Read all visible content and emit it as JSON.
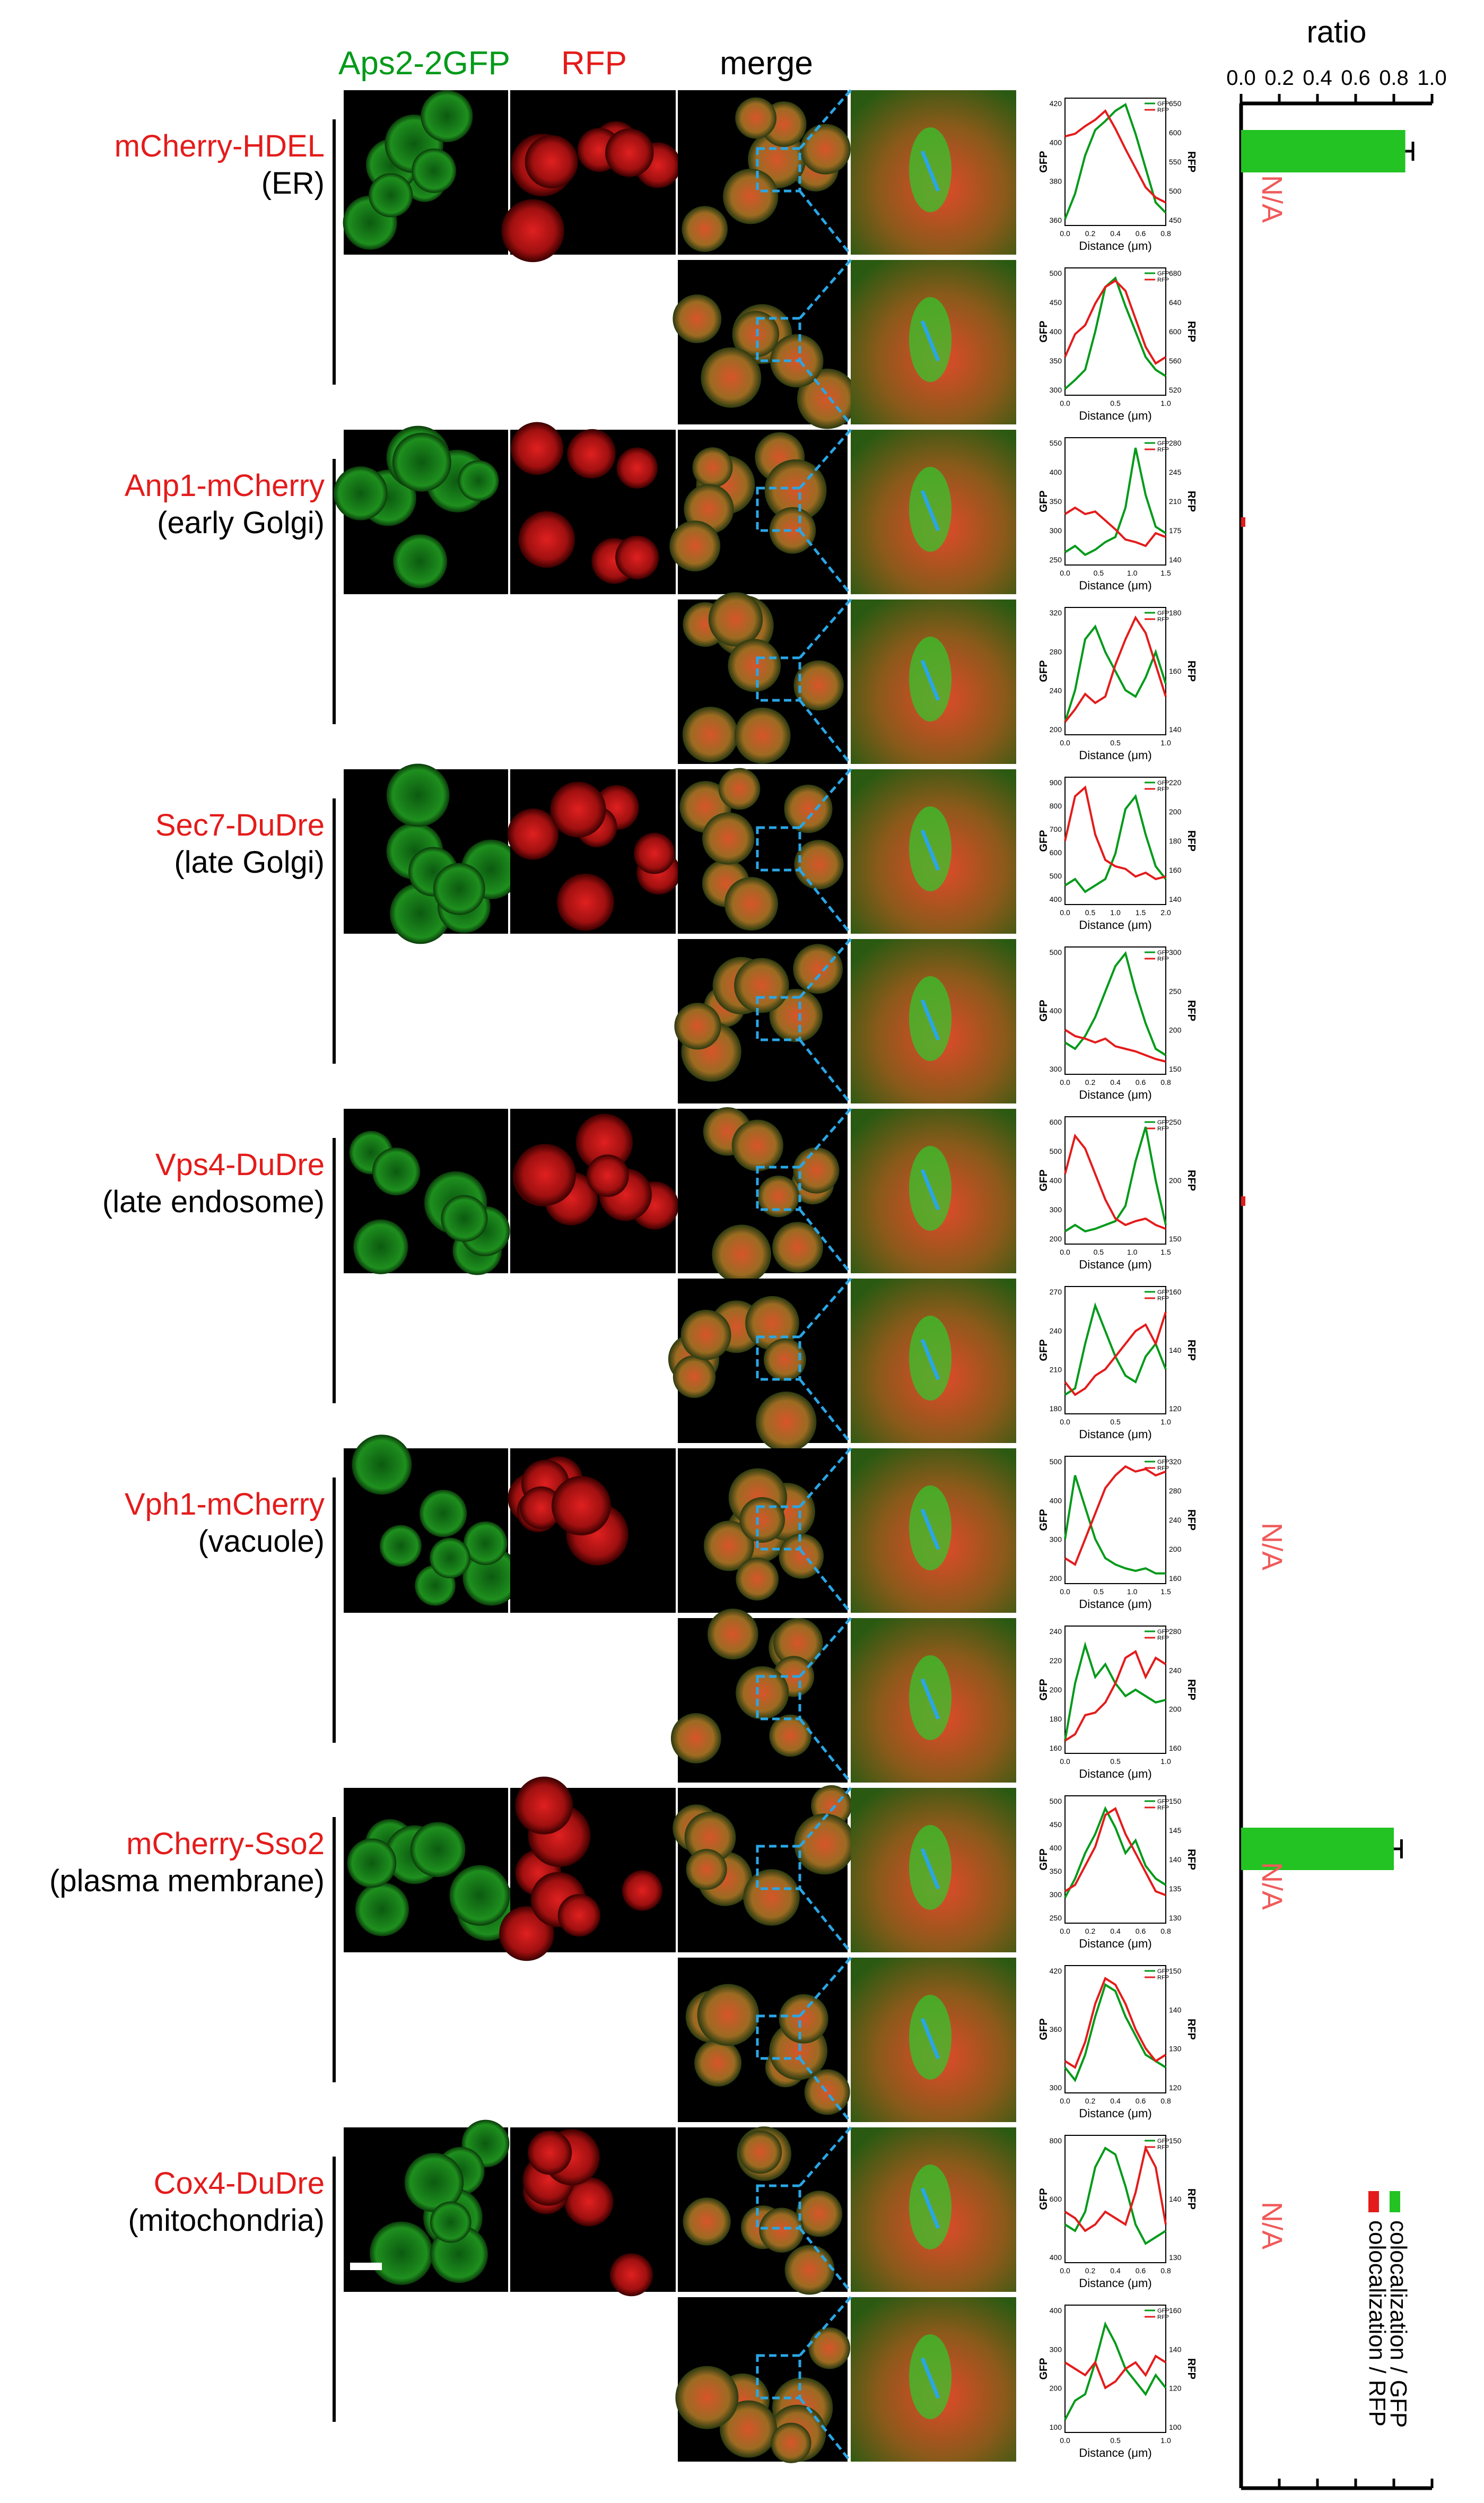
{
  "colors": {
    "gfp": "#009a19",
    "rfp": "#e41b1b",
    "bar": "#22c322",
    "na": "#f05a5a",
    "scan": "#2aa6e6",
    "axis": "#000000"
  },
  "headers": {
    "gfp": "Aps2-2GFP",
    "rfp": "RFP",
    "merge": "merge"
  },
  "groups": [
    {
      "marker": "mCherry-HDEL",
      "compartment": "(ER)",
      "na": "N/A",
      "gfp_ratio": 0.86,
      "gfp_err": 0.04,
      "rows": [
        {
          "ymin": 450,
          "ymax": 650,
          "y_ticks": [
            "420",
            "400",
            "380",
            "360"
          ],
          "r_ticks": [
            "650",
            "600",
            "550",
            "500",
            "450"
          ],
          "x_ticks": [
            "0.0",
            "0.2",
            "0.4",
            "0.6",
            "0.8"
          ],
          "gfp": [
            0.05,
            0.25,
            0.55,
            0.75,
            0.82,
            0.9,
            0.95,
            0.72,
            0.45,
            0.18,
            0.1
          ],
          "rfp": [
            0.7,
            0.72,
            0.78,
            0.83,
            0.9,
            0.76,
            0.6,
            0.45,
            0.3,
            0.22,
            0.18
          ]
        },
        {
          "ymin": 0,
          "ymax": 1,
          "y_ticks": [
            "500",
            "450",
            "400",
            "350",
            "300"
          ],
          "r_ticks": [
            "680",
            "640",
            "600",
            "560",
            "520"
          ],
          "x_ticks": [
            "0.0",
            "0.5",
            "1.0"
          ],
          "gfp": [
            0.05,
            0.12,
            0.2,
            0.5,
            0.85,
            0.92,
            0.7,
            0.5,
            0.3,
            0.2,
            0.15
          ],
          "rfp": [
            0.3,
            0.48,
            0.55,
            0.72,
            0.85,
            0.9,
            0.82,
            0.6,
            0.38,
            0.25,
            0.3
          ]
        }
      ]
    },
    {
      "marker": "Anp1-mCherry",
      "compartment": "(early Golgi)",
      "na": "",
      "gfp_ratio": 0.0,
      "gfp_err": 0.0,
      "rows": [
        {
          "ymin": 0,
          "ymax": 1,
          "y_ticks": [
            "550",
            "400",
            "350",
            "300",
            "250"
          ],
          "r_ticks": [
            "280",
            "245",
            "210",
            "175",
            "140"
          ],
          "x_ticks": [
            "0.0",
            "0.5",
            "1.0",
            "1.5"
          ],
          "gfp": [
            0.1,
            0.15,
            0.08,
            0.12,
            0.18,
            0.22,
            0.45,
            0.92,
            0.55,
            0.3,
            0.25
          ],
          "rfp": [
            0.4,
            0.45,
            0.4,
            0.42,
            0.35,
            0.28,
            0.2,
            0.18,
            0.15,
            0.25,
            0.22
          ]
        },
        {
          "ymin": 0,
          "ymax": 1,
          "y_ticks": [
            "320",
            "280",
            "240",
            "200"
          ],
          "r_ticks": [
            "180",
            "160",
            "140"
          ],
          "x_ticks": [
            "0.0",
            "0.5",
            "1.0"
          ],
          "gfp": [
            0.1,
            0.35,
            0.75,
            0.85,
            0.65,
            0.5,
            0.35,
            0.3,
            0.45,
            0.65,
            0.4
          ],
          "rfp": [
            0.1,
            0.2,
            0.32,
            0.25,
            0.3,
            0.55,
            0.75,
            0.92,
            0.8,
            0.55,
            0.3
          ]
        }
      ]
    },
    {
      "marker": "Sec7-DuDre",
      "compartment": "(late Golgi)",
      "na": "",
      "gfp_ratio": 0.0,
      "gfp_err": 0.0,
      "rows": [
        {
          "ymin": 0,
          "ymax": 1,
          "y_ticks": [
            "900",
            "800",
            "700",
            "600",
            "500",
            "400"
          ],
          "r_ticks": [
            "220",
            "200",
            "180",
            "160",
            "140"
          ],
          "x_ticks": [
            "0.0",
            "0.5",
            "1.0",
            "1.5",
            "2.0"
          ],
          "gfp": [
            0.15,
            0.2,
            0.1,
            0.15,
            0.2,
            0.4,
            0.75,
            0.85,
            0.55,
            0.3,
            0.2
          ],
          "rfp": [
            0.5,
            0.85,
            0.92,
            0.55,
            0.35,
            0.3,
            0.28,
            0.22,
            0.25,
            0.2,
            0.22
          ]
        },
        {
          "ymin": 0,
          "ymax": 1,
          "y_ticks": [
            "500",
            "400",
            "300"
          ],
          "r_ticks": [
            "300",
            "250",
            "200",
            "150"
          ],
          "x_ticks": [
            "0.0",
            "0.2",
            "0.4",
            "0.6",
            "0.8"
          ],
          "gfp": [
            0.25,
            0.2,
            0.3,
            0.45,
            0.65,
            0.85,
            0.95,
            0.65,
            0.4,
            0.2,
            0.15
          ],
          "rfp": [
            0.35,
            0.3,
            0.28,
            0.25,
            0.28,
            0.22,
            0.2,
            0.18,
            0.15,
            0.12,
            0.1
          ]
        }
      ]
    },
    {
      "marker": "Vps4-DuDre",
      "compartment": "(late endosome)",
      "na": "",
      "gfp_ratio": 0.0,
      "gfp_err": 0.0,
      "rows": [
        {
          "ymin": 0,
          "ymax": 1,
          "y_ticks": [
            "600",
            "500",
            "400",
            "300",
            "200"
          ],
          "r_ticks": [
            "250",
            "200",
            "150"
          ],
          "x_ticks": [
            "0.0",
            "0.5",
            "1.0",
            "1.5"
          ],
          "gfp": [
            0.1,
            0.15,
            0.1,
            0.12,
            0.15,
            0.18,
            0.3,
            0.65,
            0.92,
            0.5,
            0.15
          ],
          "rfp": [
            0.55,
            0.85,
            0.75,
            0.55,
            0.35,
            0.2,
            0.15,
            0.18,
            0.2,
            0.15,
            0.12
          ]
        },
        {
          "ymin": 0,
          "ymax": 1,
          "y_ticks": [
            "270",
            "240",
            "210",
            "180"
          ],
          "r_ticks": [
            "160",
            "140",
            "120"
          ],
          "x_ticks": [
            "0.0",
            "0.5",
            "1.0"
          ],
          "gfp": [
            0.15,
            0.2,
            0.55,
            0.85,
            0.65,
            0.45,
            0.3,
            0.25,
            0.45,
            0.55,
            0.35
          ],
          "rfp": [
            0.25,
            0.15,
            0.2,
            0.3,
            0.35,
            0.45,
            0.55,
            0.65,
            0.7,
            0.55,
            0.8
          ]
        }
      ]
    },
    {
      "marker": "Vph1-mCherry",
      "compartment": "(vacuole)",
      "na": "N/A",
      "gfp_ratio": 0.0,
      "gfp_err": 0.0,
      "rows": [
        {
          "ymin": 0,
          "ymax": 1,
          "y_ticks": [
            "500",
            "400",
            "300",
            "200"
          ],
          "r_ticks": [
            "320",
            "280",
            "240",
            "200",
            "160"
          ],
          "x_ticks": [
            "0.0",
            "0.5",
            "1.0",
            "1.5"
          ],
          "gfp": [
            0.35,
            0.85,
            0.6,
            0.35,
            0.2,
            0.15,
            0.12,
            0.1,
            0.12,
            0.08,
            0.08
          ],
          "rfp": [
            0.2,
            0.15,
            0.35,
            0.55,
            0.75,
            0.85,
            0.92,
            0.88,
            0.9,
            0.85,
            0.88
          ]
        },
        {
          "ymin": 0,
          "ymax": 1,
          "y_ticks": [
            "240",
            "220",
            "200",
            "180",
            "160"
          ],
          "r_ticks": [
            "280",
            "240",
            "200",
            "160"
          ],
          "x_ticks": [
            "0.0",
            "0.5",
            "1.0"
          ],
          "gfp": [
            0.1,
            0.55,
            0.85,
            0.6,
            0.7,
            0.55,
            0.45,
            0.5,
            0.45,
            0.4,
            0.42
          ],
          "rfp": [
            0.1,
            0.15,
            0.3,
            0.32,
            0.4,
            0.55,
            0.75,
            0.8,
            0.6,
            0.75,
            0.7
          ]
        }
      ]
    },
    {
      "marker": "mCherry-Sso2",
      "compartment": "(plasma membrane)",
      "na": "N/A",
      "gfp_ratio": 0.8,
      "gfp_err": 0.04,
      "rows": [
        {
          "ymin": 0,
          "ymax": 1,
          "y_ticks": [
            "500",
            "450",
            "400",
            "350",
            "300",
            "250"
          ],
          "r_ticks": [
            "150",
            "145",
            "140",
            "135",
            "130"
          ],
          "x_ticks": [
            "0.0",
            "0.2",
            "0.4",
            "0.6",
            "0.8"
          ],
          "gfp": [
            0.2,
            0.35,
            0.55,
            0.7,
            0.9,
            0.75,
            0.55,
            0.65,
            0.45,
            0.35,
            0.3
          ],
          "rfp": [
            0.25,
            0.3,
            0.45,
            0.6,
            0.85,
            0.9,
            0.7,
            0.55,
            0.4,
            0.25,
            0.22
          ]
        },
        {
          "ymin": 0,
          "ymax": 1,
          "y_ticks": [
            "420",
            "360",
            "300"
          ],
          "r_ticks": [
            "150",
            "140",
            "130",
            "120"
          ],
          "x_ticks": [
            "0.0",
            "0.2",
            "0.4",
            "0.6",
            "0.8"
          ],
          "gfp": [
            0.2,
            0.1,
            0.3,
            0.6,
            0.85,
            0.8,
            0.6,
            0.45,
            0.3,
            0.25,
            0.2
          ],
          "rfp": [
            0.25,
            0.2,
            0.4,
            0.7,
            0.9,
            0.85,
            0.7,
            0.5,
            0.35,
            0.25,
            0.3
          ]
        }
      ]
    },
    {
      "marker": "Cox4-DuDre",
      "compartment": "(mitochondria)",
      "na": "N/A",
      "gfp_ratio": 0.0,
      "gfp_err": 0.0,
      "rows": [
        {
          "ymin": 0,
          "ymax": 1,
          "y_ticks": [
            "800",
            "600",
            "400"
          ],
          "r_ticks": [
            "150",
            "140",
            "130"
          ],
          "x_ticks": [
            "0.0",
            "0.2",
            "0.4",
            "0.6",
            "0.8"
          ],
          "gfp": [
            0.3,
            0.25,
            0.4,
            0.75,
            0.9,
            0.85,
            0.6,
            0.3,
            0.15,
            0.2,
            0.25
          ],
          "rfp": [
            0.4,
            0.35,
            0.25,
            0.3,
            0.4,
            0.35,
            0.3,
            0.55,
            0.9,
            0.75,
            0.3
          ]
        },
        {
          "ymin": 0,
          "ymax": 1,
          "y_ticks": [
            "400",
            "300",
            "200",
            "100"
          ],
          "r_ticks": [
            "160",
            "140",
            "120",
            "100"
          ],
          "x_ticks": [
            "0.0",
            "0.5",
            "1.0"
          ],
          "gfp": [
            0.1,
            0.25,
            0.3,
            0.55,
            0.85,
            0.7,
            0.5,
            0.4,
            0.3,
            0.45,
            0.35
          ],
          "rfp": [
            0.55,
            0.5,
            0.45,
            0.55,
            0.35,
            0.4,
            0.5,
            0.55,
            0.45,
            0.6,
            0.55
          ]
        }
      ]
    }
  ],
  "line_plot": {
    "ylabel": "GFP",
    "rlabel": "RFP",
    "xlabel": "Distance (μm)",
    "legend_gfp": "GFP",
    "legend_rfp": "RFP"
  },
  "chart_data": {
    "type": "bar",
    "title": "ratio",
    "xlim": [
      0,
      1.0
    ],
    "x_ticks": [
      "0.0",
      "0.2",
      "0.4",
      "0.6",
      "0.8",
      "1.0"
    ],
    "categories": [
      "mCherry-HDEL",
      "Anp1-mCherry",
      "Sec7-DuDre",
      "Vps4-DuDre",
      "Vph1-mCherry",
      "mCherry-Sso2",
      "Cox4-DuDre"
    ],
    "series": [
      {
        "name": "colocalization / GFP",
        "values": [
          0.86,
          0.0,
          0.0,
          0.0,
          0.0,
          0.8,
          0.0
        ],
        "errors": [
          0.04,
          0,
          0,
          0,
          0,
          0.04,
          0
        ]
      },
      {
        "name": "colocalization / RFP",
        "values": [
          0,
          0.005,
          0,
          0.01,
          0,
          0,
          0
        ]
      }
    ],
    "legend": [
      "colocalization / GFP",
      "colocalization / RFP"
    ],
    "legend_position": "bottom-right",
    "na_label": "N/A"
  }
}
